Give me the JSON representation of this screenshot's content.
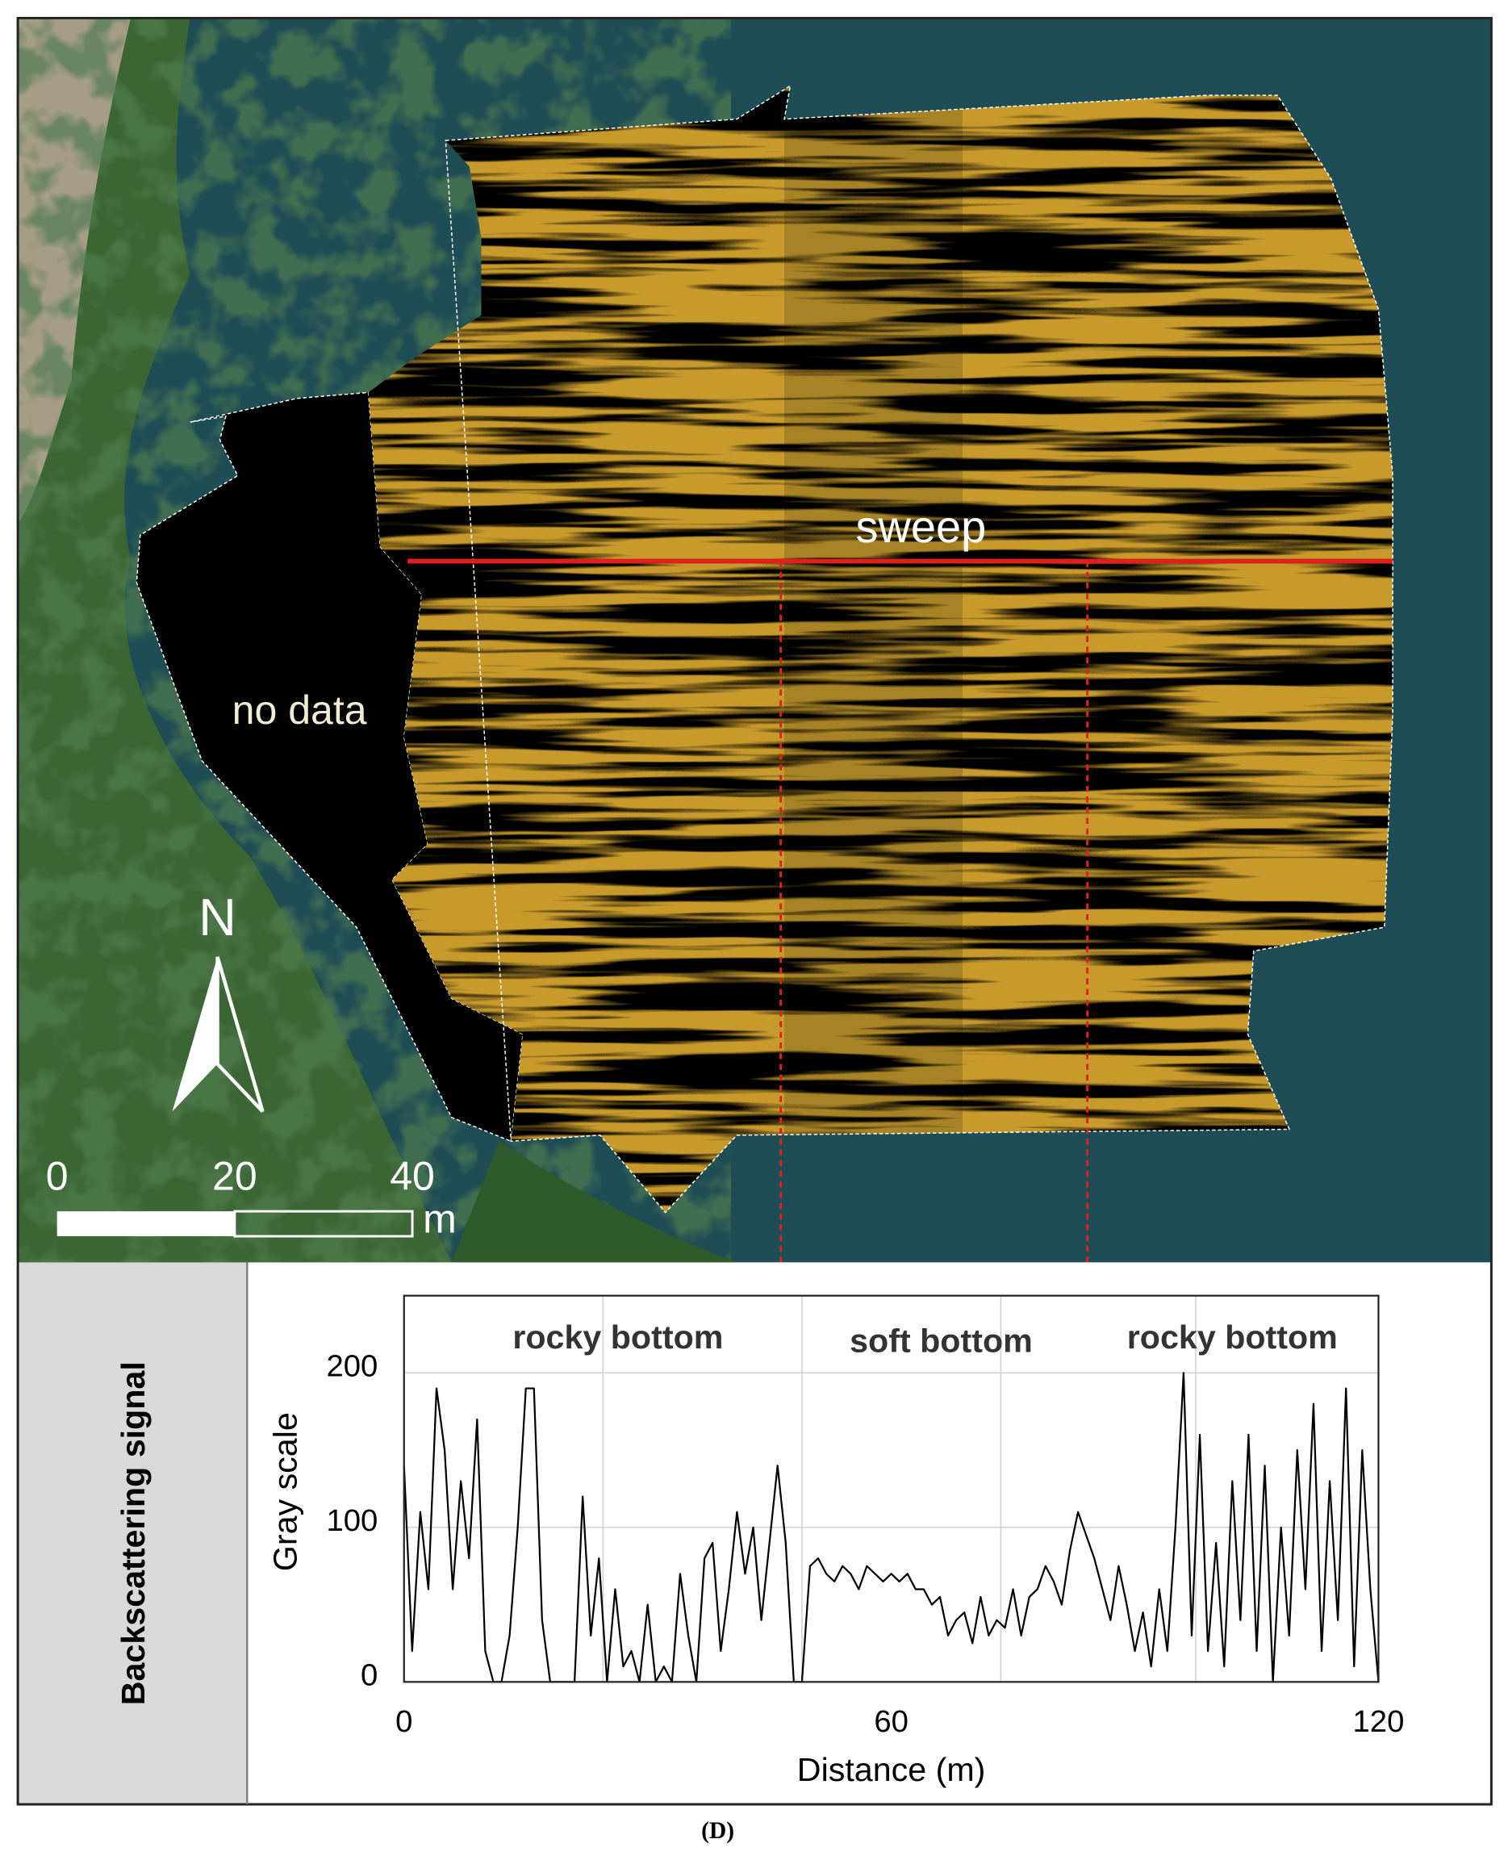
{
  "chart_data": {
    "type": "line",
    "x": [
      0,
      1,
      2,
      3,
      4,
      5,
      6,
      7,
      8,
      9,
      10,
      11,
      12,
      13,
      14,
      15,
      16,
      17,
      18,
      19,
      20,
      21,
      22,
      23,
      24,
      25,
      26,
      27,
      28,
      29,
      30,
      31,
      32,
      33,
      34,
      35,
      36,
      37,
      38,
      39,
      40,
      41,
      42,
      43,
      44,
      45,
      46,
      47,
      48,
      49,
      50,
      51,
      52,
      53,
      54,
      55,
      56,
      57,
      58,
      59,
      60,
      61,
      62,
      63,
      64,
      65,
      66,
      67,
      68,
      69,
      70,
      71,
      72,
      73,
      74,
      75,
      76,
      77,
      78,
      79,
      80,
      81,
      82,
      83,
      84,
      85,
      86,
      87,
      88,
      89,
      90,
      91,
      92,
      93,
      94,
      95,
      96,
      97,
      98,
      99,
      100,
      101,
      102,
      103,
      104,
      105,
      106,
      107,
      108,
      109,
      110,
      111,
      112,
      113,
      114,
      115,
      116,
      117,
      118,
      119,
      120
    ],
    "values": [
      140,
      20,
      110,
      60,
      190,
      150,
      60,
      130,
      80,
      170,
      20,
      0,
      0,
      30,
      100,
      190,
      190,
      40,
      0,
      0,
      0,
      0,
      120,
      30,
      80,
      0,
      60,
      10,
      20,
      0,
      50,
      0,
      10,
      0,
      70,
      30,
      0,
      80,
      90,
      20,
      60,
      110,
      70,
      100,
      40,
      90,
      140,
      90,
      0,
      0,
      75,
      80,
      70,
      65,
      75,
      70,
      60,
      75,
      70,
      65,
      70,
      65,
      70,
      60,
      60,
      50,
      55,
      30,
      40,
      45,
      25,
      55,
      30,
      40,
      35,
      60,
      30,
      55,
      60,
      75,
      65,
      50,
      85,
      110,
      95,
      80,
      60,
      40,
      75,
      50,
      20,
      45,
      10,
      60,
      20,
      100,
      200,
      30,
      160,
      20,
      90,
      10,
      130,
      40,
      160,
      20,
      140,
      0,
      100,
      30,
      150,
      60,
      180,
      20,
      130,
      40,
      190,
      10,
      150,
      60,
      0
    ],
    "color": "#000000",
    "xlim": [
      0,
      120
    ],
    "ylim": [
      0,
      250
    ],
    "xticks": [
      0,
      60,
      120
    ],
    "yticks": [
      0,
      100,
      200
    ],
    "xgrid": [
      24.5,
      49,
      73.5,
      97.5
    ],
    "grid": true,
    "xlabel": "Distance (m)",
    "ylabel": "Gray scale",
    "panel_label": "Backscattering signal",
    "annotations": [
      "rocky bottom",
      "soft bottom",
      "rocky bottom"
    ]
  },
  "map": {
    "sweep": "sweep",
    "no_data": "no data",
    "north": "N",
    "scale_bar": {
      "ticks": [
        0,
        20,
        40
      ],
      "unit": "m"
    }
  },
  "caption": "(D)"
}
